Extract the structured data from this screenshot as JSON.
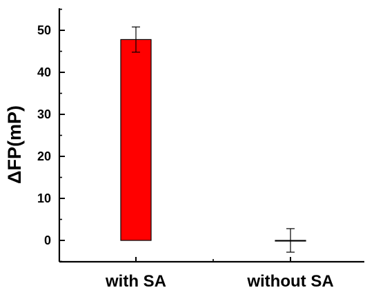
{
  "chart_data": {
    "type": "bar",
    "categories": [
      "with SA",
      "without SA"
    ],
    "values": [
      47.8,
      0
    ],
    "errors": [
      3.0,
      2.8
    ],
    "title": "",
    "xlabel": "",
    "ylabel": "ΔFP(mP)",
    "ylim": [
      -5,
      55
    ],
    "yticks": [
      0,
      10,
      20,
      30,
      40,
      50
    ],
    "ytick_labels": [
      "0",
      "10",
      "20",
      "30",
      "40",
      "50"
    ],
    "grid": false,
    "legend": "none",
    "colors": {
      "bar_fill": "#ff0000",
      "outline": "#000000",
      "background": "#ffffff"
    }
  }
}
